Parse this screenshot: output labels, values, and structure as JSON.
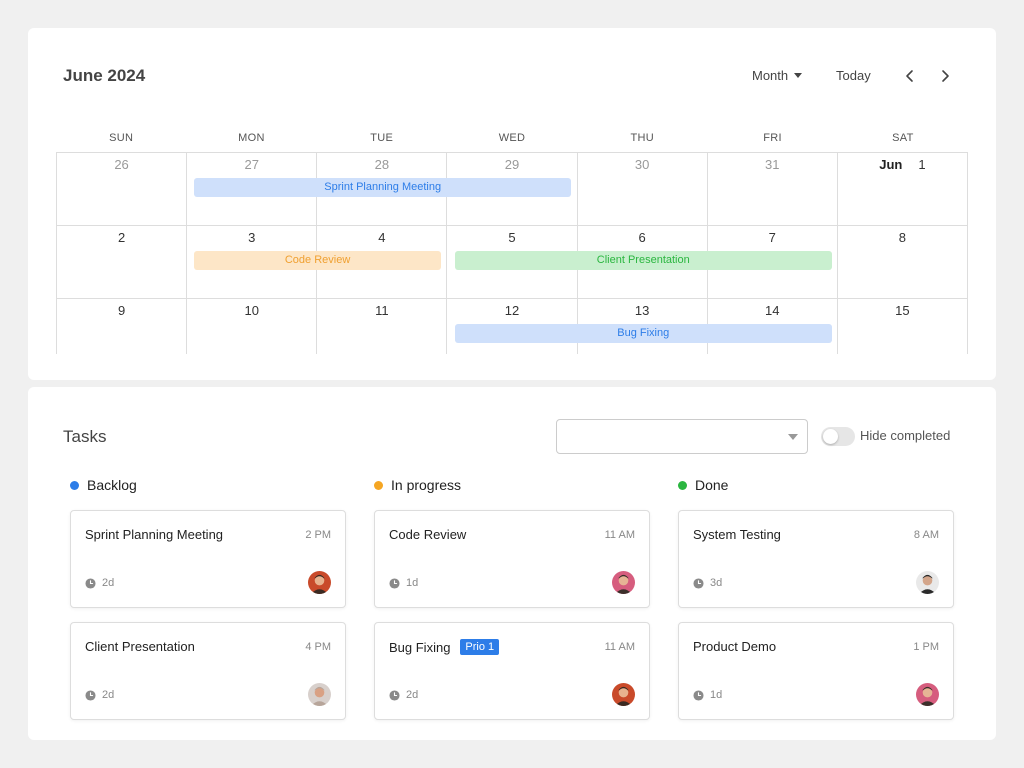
{
  "calendar": {
    "title": "June 2024",
    "view_label": "Month",
    "today_label": "Today",
    "weekdays": [
      "SUN",
      "MON",
      "TUE",
      "WED",
      "THU",
      "FRI",
      "SAT"
    ],
    "month_prefix": "Jun",
    "weeks": [
      [
        {
          "d": "26",
          "muted": true
        },
        {
          "d": "27",
          "muted": true
        },
        {
          "d": "28",
          "muted": true
        },
        {
          "d": "29",
          "muted": true
        },
        {
          "d": "30",
          "muted": true
        },
        {
          "d": "31",
          "muted": true
        },
        {
          "d": "1",
          "muted": false
        }
      ],
      [
        {
          "d": "2"
        },
        {
          "d": "3"
        },
        {
          "d": "4"
        },
        {
          "d": "5"
        },
        {
          "d": "6"
        },
        {
          "d": "7"
        },
        {
          "d": "8"
        }
      ],
      [
        {
          "d": "9"
        },
        {
          "d": "10"
        },
        {
          "d": "11"
        },
        {
          "d": "12"
        },
        {
          "d": "13"
        },
        {
          "d": "14"
        },
        {
          "d": "15"
        }
      ]
    ],
    "events": [
      {
        "label": "Sprint Planning Meeting",
        "week": 0,
        "start_col": 1,
        "end_col": 3,
        "bg": "#cfe0fb",
        "fg": "#2d7de8"
      },
      {
        "label": "Code Review",
        "week": 1,
        "start_col": 1,
        "end_col": 2,
        "bg": "#fde6c7",
        "fg": "#f0a030"
      },
      {
        "label": "Client Presentation",
        "week": 1,
        "start_col": 3,
        "end_col": 5,
        "bg": "#c9efcf",
        "fg": "#2bb640"
      },
      {
        "label": "Bug Fixing",
        "week": 2,
        "start_col": 3,
        "end_col": 5,
        "bg": "#cfe0fb",
        "fg": "#2d7de8"
      }
    ]
  },
  "tasks": {
    "title": "Tasks",
    "filter_value": "",
    "hide_completed_label": "Hide completed",
    "columns": [
      {
        "name": "Backlog",
        "color": "#2d7de8",
        "cards": [
          {
            "name": "Sprint Planning Meeting",
            "time": "2 PM",
            "duration": "2d",
            "avatar": "man-beard-red"
          },
          {
            "name": "Client Presentation",
            "time": "4 PM",
            "duration": "2d",
            "avatar": "man-bald"
          }
        ]
      },
      {
        "name": "In progress",
        "color": "#f5a623",
        "cards": [
          {
            "name": "Code Review",
            "time": "11 AM",
            "duration": "1d",
            "avatar": "man-pink"
          },
          {
            "name": "Bug Fixing",
            "badge": "Prio 1",
            "time": "11 AM",
            "duration": "2d",
            "avatar": "man-beard-red"
          }
        ]
      },
      {
        "name": "Done",
        "color": "#2bb640",
        "cards": [
          {
            "name": "System Testing",
            "time": "8 AM",
            "duration": "3d",
            "avatar": "man-dark"
          },
          {
            "name": "Product Demo",
            "time": "1 PM",
            "duration": "1d",
            "avatar": "man-pink"
          }
        ]
      }
    ]
  }
}
